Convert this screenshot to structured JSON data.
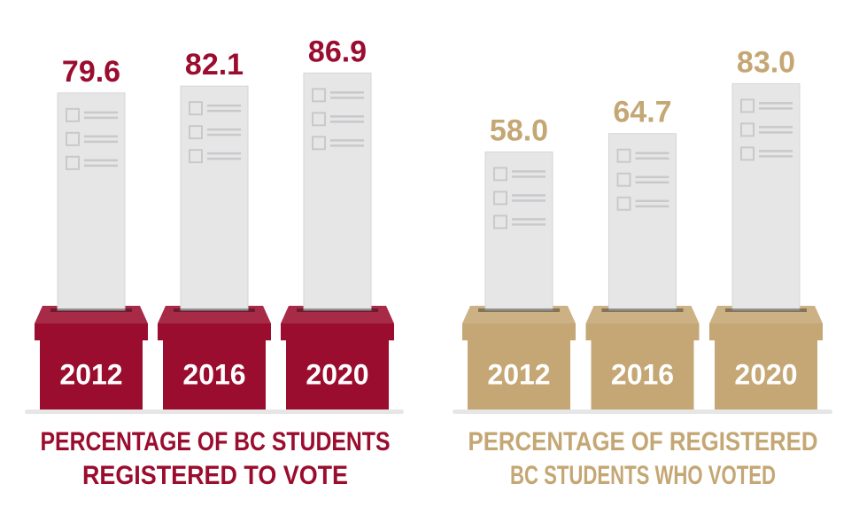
{
  "chart_data": [
    {
      "type": "bar",
      "title": [
        "PERCENTAGE OF BC STUDENTS",
        "REGISTERED TO VOTE"
      ],
      "categories": [
        "2012",
        "2016",
        "2020"
      ],
      "values": [
        79.6,
        82.1,
        86.9
      ],
      "value_labels": [
        "79.6",
        "82.1",
        "86.9"
      ],
      "color": "#9b0d2e"
    },
    {
      "type": "bar",
      "title": [
        "PERCENTAGE OF REGISTERED",
        "BC STUDENTS WHO VOTED"
      ],
      "categories": [
        "2012",
        "2016",
        "2020"
      ],
      "values": [
        58.0,
        64.7,
        83.0
      ],
      "value_labels": [
        "58.0",
        "64.7",
        "83.0"
      ],
      "color": "#c4a774"
    }
  ]
}
